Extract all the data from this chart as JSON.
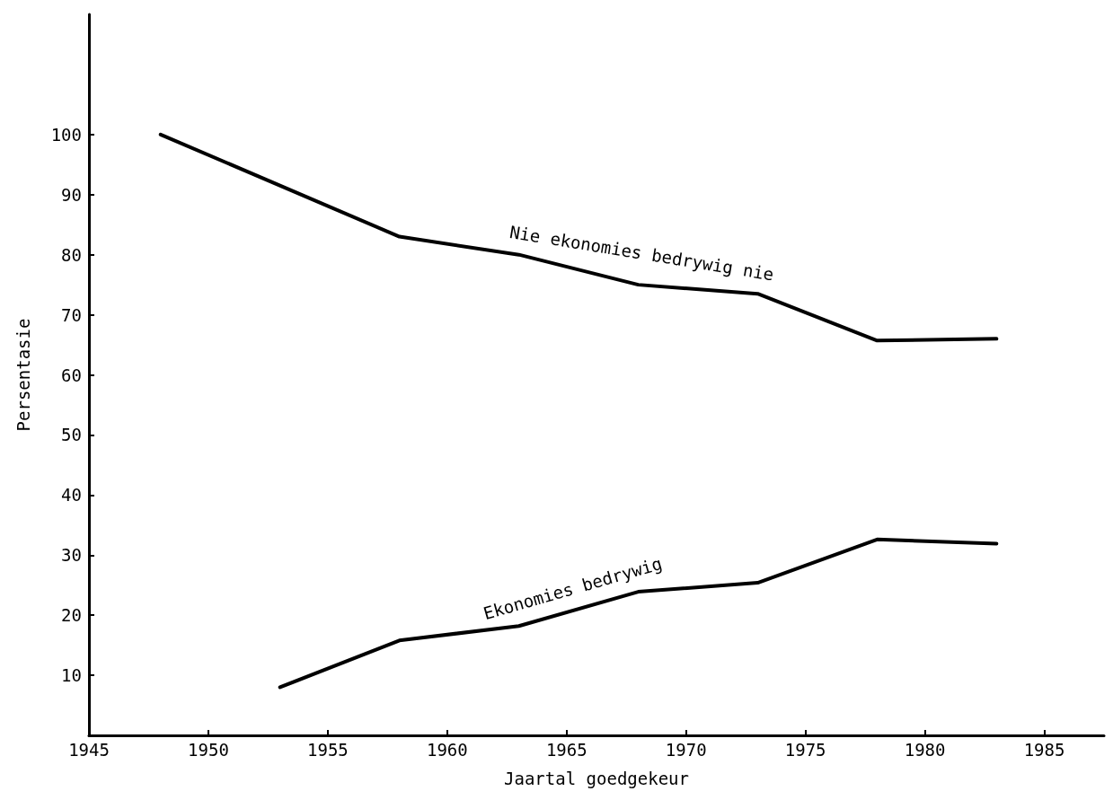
{
  "chart_data": {
    "type": "line",
    "xlabel": "Jaartal goedgekeur",
    "ylabel": "Persentasie",
    "xlim": [
      1945,
      1987.5
    ],
    "xticks": [
      1945,
      1950,
      1955,
      1960,
      1965,
      1970,
      1975,
      1980,
      1985
    ],
    "ylim": [
      0,
      120
    ],
    "yticks": [
      10,
      20,
      30,
      40,
      50,
      60,
      70,
      80,
      90,
      100
    ],
    "grid": false,
    "marker": "none",
    "line_style": "solid",
    "series": [
      {
        "name": "Nie ekonomies bedrywig nie",
        "color": "#000000",
        "x": [
          1948,
          1958,
          1963,
          1968,
          1973,
          1978,
          1983
        ],
        "values": [
          100,
          83,
          80,
          75,
          73.5,
          65.7,
          66
        ]
      },
      {
        "name": "Ekonomies bedrywig",
        "color": "#000000",
        "x": [
          1953,
          1958,
          1963,
          1968,
          1973,
          1978,
          1983
        ],
        "values": [
          8,
          15.8,
          18.2,
          23.9,
          25.4,
          32.6,
          31.9
        ]
      }
    ]
  }
}
